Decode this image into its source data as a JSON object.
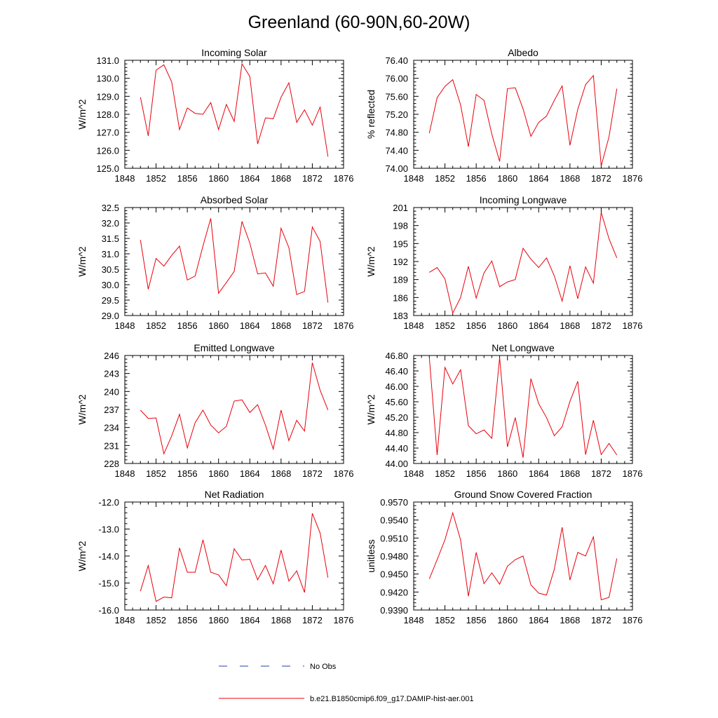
{
  "title": "Greenland (60-90N,60-20W)",
  "legend": [
    {
      "label": "No Obs",
      "color": "#1f3faa",
      "style": "dashed"
    },
    {
      "label": "b.e21.B1850cmip6.f09_g17.DAMIP-hist-aer.001",
      "color": "#e8000b",
      "style": "solid"
    }
  ],
  "chart_data": [
    {
      "type": "line",
      "title": "Incoming Solar",
      "ylabel": "W/m^2",
      "xlim": [
        1848,
        1876
      ],
      "ylim": [
        125,
        131
      ],
      "xticks": [
        1848,
        1852,
        1856,
        1860,
        1864,
        1868,
        1872,
        1876
      ],
      "yticks": [
        "125.0",
        "126.0",
        "127.0",
        "128.0",
        "129.0",
        "130.0",
        "131.0"
      ],
      "x": [
        1850,
        1851,
        1852,
        1853,
        1854,
        1855,
        1856,
        1857,
        1858,
        1859,
        1860,
        1861,
        1862,
        1863,
        1864,
        1865,
        1866,
        1867,
        1868,
        1869,
        1870,
        1871,
        1872,
        1873,
        1874
      ],
      "series": [
        {
          "color": "#e8000b",
          "values": [
            128.95,
            126.8,
            130.45,
            130.75,
            129.8,
            127.15,
            128.35,
            128.05,
            128.0,
            128.65,
            127.15,
            128.55,
            127.6,
            130.8,
            130.1,
            126.35,
            127.8,
            127.75,
            128.95,
            129.75,
            127.55,
            128.25,
            127.4,
            128.4,
            125.65
          ]
        }
      ]
    },
    {
      "type": "line",
      "title": "Albedo",
      "ylabel": "% reflected",
      "xlim": [
        1848,
        1876
      ],
      "ylim": [
        74.0,
        76.4
      ],
      "xticks": [
        1848,
        1852,
        1856,
        1860,
        1864,
        1868,
        1872,
        1876
      ],
      "yticks": [
        "74.00",
        "74.40",
        "74.80",
        "75.20",
        "75.60",
        "76.00",
        "76.40"
      ],
      "x": [
        1850,
        1851,
        1852,
        1853,
        1854,
        1855,
        1856,
        1857,
        1858,
        1859,
        1860,
        1861,
        1862,
        1863,
        1864,
        1865,
        1866,
        1867,
        1868,
        1869,
        1870,
        1871,
        1872,
        1873,
        1874
      ],
      "series": [
        {
          "color": "#e8000b",
          "values": [
            74.78,
            75.57,
            75.82,
            75.97,
            75.41,
            74.48,
            75.64,
            75.51,
            74.76,
            74.15,
            75.77,
            75.79,
            75.32,
            74.71,
            75.02,
            75.16,
            75.51,
            75.83,
            74.51,
            75.31,
            75.86,
            76.06,
            74.05,
            74.7,
            75.77
          ]
        }
      ]
    },
    {
      "type": "line",
      "title": "Absorbed Solar",
      "ylabel": "W/m^2",
      "xlim": [
        1848,
        1876
      ],
      "ylim": [
        29.0,
        32.5
      ],
      "xticks": [
        1848,
        1852,
        1856,
        1860,
        1864,
        1868,
        1872,
        1876
      ],
      "yticks": [
        "29.0",
        "29.5",
        "30.0",
        "30.5",
        "31.0",
        "31.5",
        "32.0",
        "32.5"
      ],
      "x": [
        1850,
        1851,
        1852,
        1853,
        1854,
        1855,
        1856,
        1857,
        1858,
        1859,
        1860,
        1861,
        1862,
        1863,
        1864,
        1865,
        1866,
        1867,
        1868,
        1869,
        1870,
        1871,
        1872,
        1873,
        1874
      ],
      "series": [
        {
          "color": "#e8000b",
          "values": [
            31.45,
            29.85,
            30.85,
            30.6,
            30.95,
            31.25,
            30.15,
            30.28,
            31.25,
            32.15,
            29.72,
            30.07,
            30.43,
            32.05,
            31.35,
            30.35,
            30.38,
            29.95,
            31.83,
            31.2,
            29.68,
            29.78,
            31.87,
            31.4,
            29.42
          ]
        }
      ]
    },
    {
      "type": "line",
      "title": "Incoming Longwave",
      "ylabel": "W/m^2",
      "xlim": [
        1848,
        1876
      ],
      "ylim": [
        183,
        201
      ],
      "xticks": [
        1848,
        1852,
        1856,
        1860,
        1864,
        1868,
        1872,
        1876
      ],
      "yticks": [
        "183",
        "186",
        "189",
        "192",
        "195",
        "198",
        "201"
      ],
      "x": [
        1850,
        1851,
        1852,
        1853,
        1854,
        1855,
        1856,
        1857,
        1858,
        1859,
        1860,
        1861,
        1862,
        1863,
        1864,
        1865,
        1866,
        1867,
        1868,
        1869,
        1870,
        1871,
        1872,
        1873,
        1874
      ],
      "series": [
        {
          "color": "#e8000b",
          "values": [
            190.2,
            191.0,
            189.1,
            183.4,
            186.0,
            191.2,
            185.9,
            190.1,
            192.1,
            187.8,
            188.6,
            189.0,
            194.2,
            192.4,
            191.0,
            192.6,
            189.6,
            185.4,
            191.3,
            185.8,
            191.1,
            188.4,
            200.2,
            195.8,
            192.6
          ]
        }
      ]
    },
    {
      "type": "line",
      "title": "Emitted Longwave",
      "ylabel": "W/m^2",
      "xlim": [
        1848,
        1876
      ],
      "ylim": [
        228,
        246
      ],
      "xticks": [
        1848,
        1852,
        1856,
        1860,
        1864,
        1868,
        1872,
        1876
      ],
      "yticks": [
        "228",
        "231",
        "234",
        "237",
        "240",
        "243",
        "246"
      ],
      "x": [
        1850,
        1851,
        1852,
        1853,
        1854,
        1855,
        1856,
        1857,
        1858,
        1859,
        1860,
        1861,
        1862,
        1863,
        1864,
        1865,
        1866,
        1867,
        1868,
        1869,
        1870,
        1871,
        1872,
        1873,
        1874
      ],
      "series": [
        {
          "color": "#e8000b",
          "values": [
            236.9,
            235.5,
            235.6,
            229.6,
            232.6,
            236.2,
            230.6,
            234.8,
            236.9,
            234.4,
            233.1,
            234.2,
            238.4,
            238.6,
            236.5,
            237.8,
            234.4,
            230.4,
            236.9,
            231.8,
            235.2,
            233.4,
            244.8,
            240.2,
            236.9
          ]
        }
      ]
    },
    {
      "type": "line",
      "title": "Net Longwave",
      "ylabel": "W/m^2",
      "xlim": [
        1848,
        1876
      ],
      "ylim": [
        44.0,
        46.8
      ],
      "xticks": [
        1848,
        1852,
        1856,
        1860,
        1864,
        1868,
        1872,
        1876
      ],
      "yticks": [
        "44.00",
        "44.40",
        "44.80",
        "45.20",
        "45.60",
        "46.00",
        "46.40",
        "46.80"
      ],
      "x": [
        1850,
        1851,
        1852,
        1853,
        1854,
        1855,
        1856,
        1857,
        1858,
        1859,
        1860,
        1861,
        1862,
        1863,
        1864,
        1865,
        1866,
        1867,
        1868,
        1869,
        1870,
        1871,
        1872,
        1873,
        1874
      ],
      "series": [
        {
          "color": "#e8000b",
          "values": [
            46.75,
            44.22,
            46.49,
            46.06,
            46.43,
            44.98,
            44.77,
            44.87,
            44.65,
            46.75,
            44.43,
            45.19,
            44.15,
            46.2,
            45.55,
            45.19,
            44.72,
            44.95,
            45.61,
            46.13,
            44.23,
            45.12,
            44.23,
            44.52,
            44.22
          ]
        }
      ]
    },
    {
      "type": "line",
      "title": "Net Radiation",
      "ylabel": "W/m^2",
      "xlim": [
        1848,
        1876
      ],
      "ylim": [
        -16.0,
        -12.0
      ],
      "xticks": [
        1848,
        1852,
        1856,
        1860,
        1864,
        1868,
        1872,
        1876
      ],
      "yticks": [
        "-16.0",
        "-15.0",
        "-14.0",
        "-13.0",
        "-12.0"
      ],
      "x": [
        1850,
        1851,
        1852,
        1853,
        1854,
        1855,
        1856,
        1857,
        1858,
        1859,
        1860,
        1861,
        1862,
        1863,
        1864,
        1865,
        1866,
        1867,
        1868,
        1869,
        1870,
        1871,
        1872,
        1873,
        1874
      ],
      "series": [
        {
          "color": "#e8000b",
          "values": [
            -15.3,
            -14.35,
            -15.68,
            -15.52,
            -15.55,
            -13.7,
            -14.6,
            -14.6,
            -13.4,
            -14.6,
            -14.7,
            -15.1,
            -13.73,
            -14.15,
            -14.12,
            -14.88,
            -14.35,
            -15.03,
            -13.78,
            -14.93,
            -14.55,
            -15.35,
            -12.42,
            -13.15,
            -14.8
          ]
        }
      ]
    },
    {
      "type": "line",
      "title": "Ground Snow Covered Fraction",
      "ylabel": "unitless",
      "xlim": [
        1848,
        1876
      ],
      "ylim": [
        0.939,
        0.957
      ],
      "xticks": [
        1848,
        1852,
        1856,
        1860,
        1864,
        1868,
        1872,
        1876
      ],
      "yticks": [
        "0.9390",
        "0.9420",
        "0.9450",
        "0.9480",
        "0.9510",
        "0.9540",
        "0.9570"
      ],
      "x": [
        1850,
        1851,
        1852,
        1853,
        1854,
        1855,
        1856,
        1857,
        1858,
        1859,
        1860,
        1861,
        1862,
        1863,
        1864,
        1865,
        1866,
        1867,
        1868,
        1869,
        1870,
        1871,
        1872,
        1873,
        1874
      ],
      "series": [
        {
          "color": "#e8000b",
          "values": [
            0.9442,
            0.9474,
            0.9507,
            0.9552,
            0.9507,
            0.9413,
            0.9486,
            0.9434,
            0.9452,
            0.9433,
            0.9463,
            0.9474,
            0.948,
            0.9432,
            0.9418,
            0.9415,
            0.9458,
            0.9528,
            0.944,
            0.9486,
            0.948,
            0.9512,
            0.9407,
            0.9411,
            0.9476
          ]
        }
      ]
    }
  ]
}
